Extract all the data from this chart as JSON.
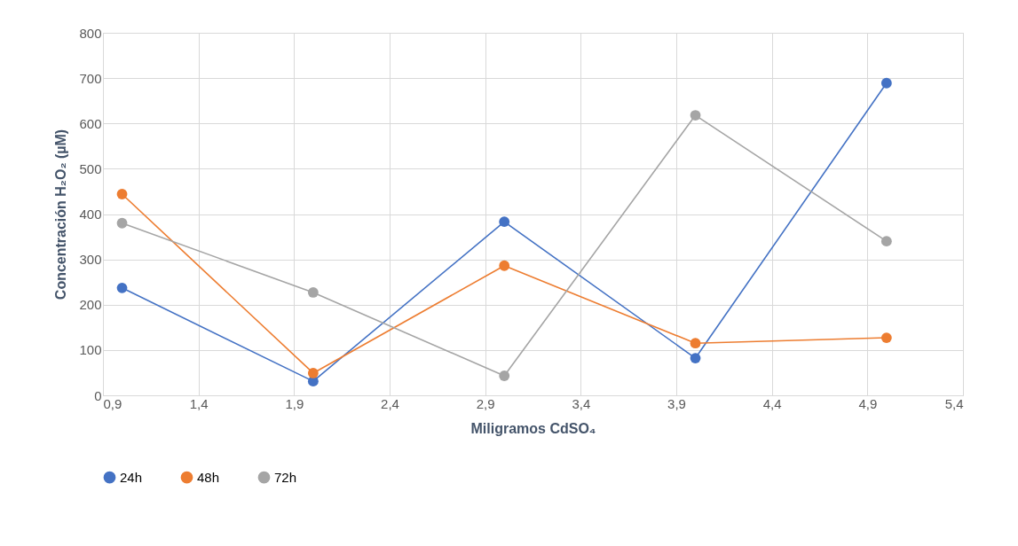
{
  "chart_data": {
    "type": "line",
    "xlabel": "Miligramos CdSO₄",
    "ylabel": "Concentración H₂O₂ (µM)",
    "x": [
      1,
      2,
      3,
      4,
      5
    ],
    "series": [
      {
        "name": "24h",
        "color": "#4472c4",
        "values": [
          237,
          31,
          383,
          82,
          689
        ]
      },
      {
        "name": "48h",
        "color": "#ed7d31",
        "values": [
          444,
          49,
          286,
          115,
          127
        ]
      },
      {
        "name": "72h",
        "color": "#a5a5a5",
        "values": [
          380,
          227,
          43,
          618,
          340
        ]
      }
    ],
    "xlim": [
      0.9,
      5.4
    ],
    "xticks": [
      {
        "value": 0.9,
        "label": "0,9"
      },
      {
        "value": 1.4,
        "label": "1,4"
      },
      {
        "value": 1.9,
        "label": "1,9"
      },
      {
        "value": 2.4,
        "label": "2,4"
      },
      {
        "value": 2.9,
        "label": "2,9"
      },
      {
        "value": 3.4,
        "label": "3,4"
      },
      {
        "value": 3.9,
        "label": "3,9"
      },
      {
        "value": 4.4,
        "label": "4,4"
      },
      {
        "value": 4.9,
        "label": "4,9"
      },
      {
        "value": 5.4,
        "label": "5,4"
      }
    ],
    "ylim": [
      0,
      800
    ],
    "yticks": [
      0,
      100,
      200,
      300,
      400,
      500,
      600,
      700,
      800
    ],
    "grid": true,
    "legend": "bottom",
    "marker": "circle",
    "line_style": "solid"
  }
}
